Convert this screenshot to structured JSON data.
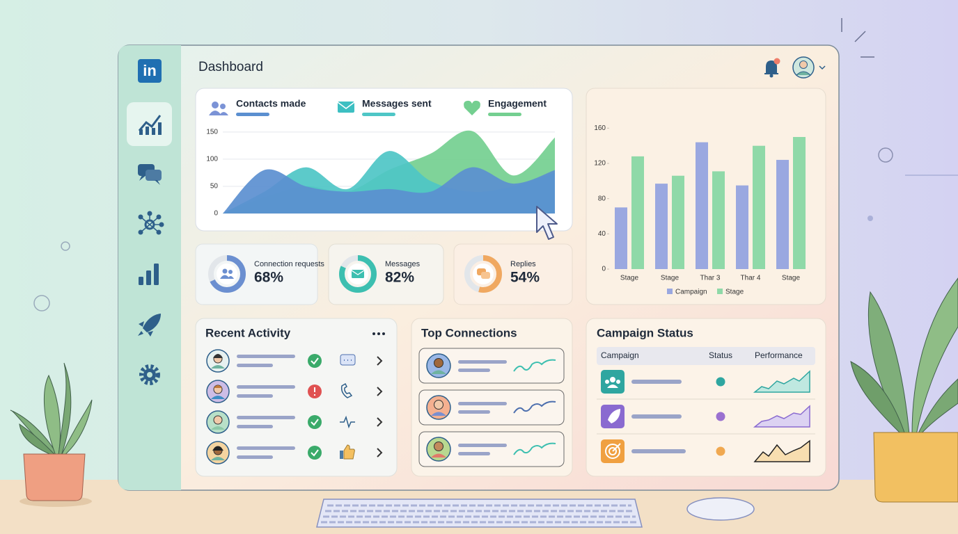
{
  "header": {
    "logo": "in",
    "title": "Dashboard"
  },
  "area_chart": {
    "type": "area",
    "series": [
      {
        "name": "Contacts made",
        "color": "#5b8fd0",
        "values": [
          0,
          80,
          50,
          40,
          45,
          40,
          85,
          55,
          80
        ]
      },
      {
        "name": "Messages sent",
        "color": "#4ec6c6",
        "values": [
          0,
          40,
          85,
          45,
          115,
          60,
          40,
          50,
          75
        ]
      },
      {
        "name": "Engagement",
        "color": "#74cf90",
        "values": [
          0,
          30,
          50,
          40,
          80,
          110,
          152,
          70,
          140
        ]
      }
    ],
    "ylim": [
      0,
      155
    ],
    "yticks": [
      0,
      50,
      100,
      150
    ]
  },
  "kpis": [
    {
      "label": "Connection requests",
      "value": 68,
      "value_label": "68%",
      "color": "#6b8fd0"
    },
    {
      "label": "Messages",
      "value": 82,
      "value_label": "82%",
      "color": "#3dbfb0"
    },
    {
      "label": "Replies",
      "value": 54,
      "value_label": "54%",
      "color": "#f0a860"
    }
  ],
  "bar_chart": {
    "type": "bar",
    "categories": [
      "Stage",
      "Stage",
      "Thar 3",
      "Thar 4",
      "Stage"
    ],
    "series": [
      {
        "name": "Campaign",
        "color": "#9aa8e0",
        "values": [
          70,
          97,
          144,
          95,
          124
        ]
      },
      {
        "name": "Stage",
        "color": "#8fd9a8",
        "values": [
          128,
          106,
          111,
          140,
          150
        ]
      }
    ],
    "ylim": [
      0,
      165
    ],
    "yticks": [
      0,
      40,
      80,
      120,
      160
    ]
  },
  "recent_activity": {
    "title": "Recent Activity"
  },
  "top_connections": {
    "title": "Top Connections"
  },
  "campaign_status": {
    "title": "Campaign Status",
    "columns": [
      "Campaign",
      "Status",
      "Performance"
    ]
  }
}
